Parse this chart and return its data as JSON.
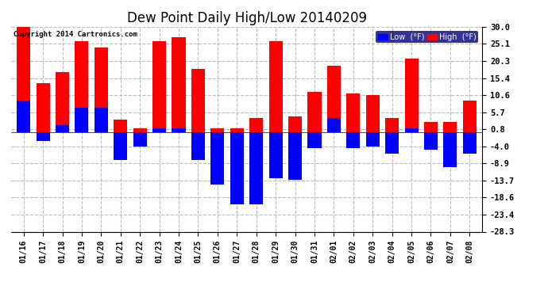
{
  "title": "Dew Point Daily High/Low 20140209",
  "copyright": "Copyright 2014 Cartronics.com",
  "dates": [
    "01/16",
    "01/17",
    "01/18",
    "01/19",
    "01/20",
    "01/21",
    "01/22",
    "01/23",
    "01/24",
    "01/25",
    "01/26",
    "01/27",
    "01/28",
    "01/29",
    "01/30",
    "01/31",
    "02/01",
    "02/02",
    "02/03",
    "02/04",
    "02/05",
    "02/06",
    "02/07",
    "02/08"
  ],
  "high": [
    30.0,
    14.0,
    17.0,
    26.0,
    24.0,
    3.5,
    1.0,
    26.0,
    27.0,
    18.0,
    1.0,
    1.0,
    4.0,
    26.0,
    4.5,
    11.5,
    19.0,
    11.0,
    10.5,
    4.0,
    21.0,
    3.0,
    3.0,
    9.0
  ],
  "low": [
    9.0,
    -2.5,
    2.0,
    7.0,
    7.0,
    -8.0,
    -4.0,
    1.0,
    1.0,
    -8.0,
    -15.0,
    -20.5,
    -20.5,
    -13.0,
    -13.5,
    -4.5,
    4.0,
    -4.5,
    -4.0,
    -6.0,
    1.0,
    -5.0,
    -10.0,
    -6.0
  ],
  "high_color": "#ff0000",
  "low_color": "#0000ff",
  "ylim": [
    -28.3,
    30.0
  ],
  "yticks": [
    30.0,
    25.1,
    20.3,
    15.4,
    10.6,
    5.7,
    0.8,
    -4.0,
    -8.9,
    -13.7,
    -18.6,
    -23.4,
    -28.3
  ],
  "bg_color": "#ffffff",
  "grid_color": "#bbbbbb",
  "title_fontsize": 12,
  "bar_width": 0.7
}
